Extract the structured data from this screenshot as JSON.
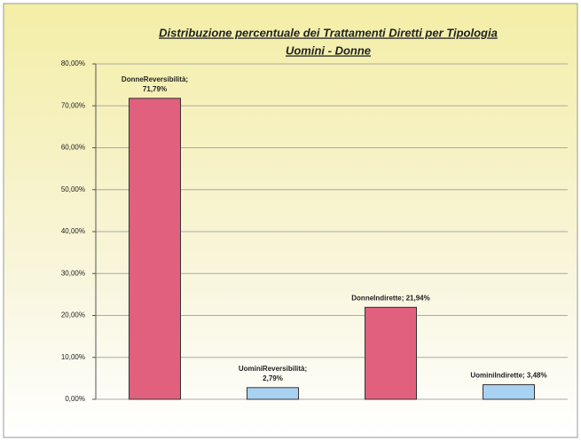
{
  "chart_data": {
    "type": "bar",
    "title": [
      "Distribuzione percentuale dei Trattamenti Diretti per Tipologia",
      "Uomini - Donne"
    ],
    "values": [
      71.79,
      2.79,
      21.94,
      3.48
    ],
    "value_labels": [
      [
        "DonneReversibilità;",
        "71,79%"
      ],
      [
        "UominiReversibilità;",
        "2,79%"
      ],
      [
        "DonneIndirette; 21,94%"
      ],
      [
        "UominiIndirette; 3,48%"
      ]
    ],
    "colors": [
      "#e0607e",
      "#a9d2f2",
      "#e0607e",
      "#a9d2f2"
    ],
    "ylim": [
      0,
      80
    ],
    "yticks": [
      {
        "value": 0,
        "label": "0,00%"
      },
      {
        "value": 10,
        "label": "10,00%"
      },
      {
        "value": 20,
        "label": "20,00%"
      },
      {
        "value": 30,
        "label": "30,00%"
      },
      {
        "value": 40,
        "label": "40,00%"
      },
      {
        "value": 50,
        "label": "50,00%"
      },
      {
        "value": 60,
        "label": "60,00%"
      },
      {
        "value": 70,
        "label": "70,00%"
      },
      {
        "value": 80,
        "label": "80,00%"
      }
    ],
    "grid": true
  }
}
